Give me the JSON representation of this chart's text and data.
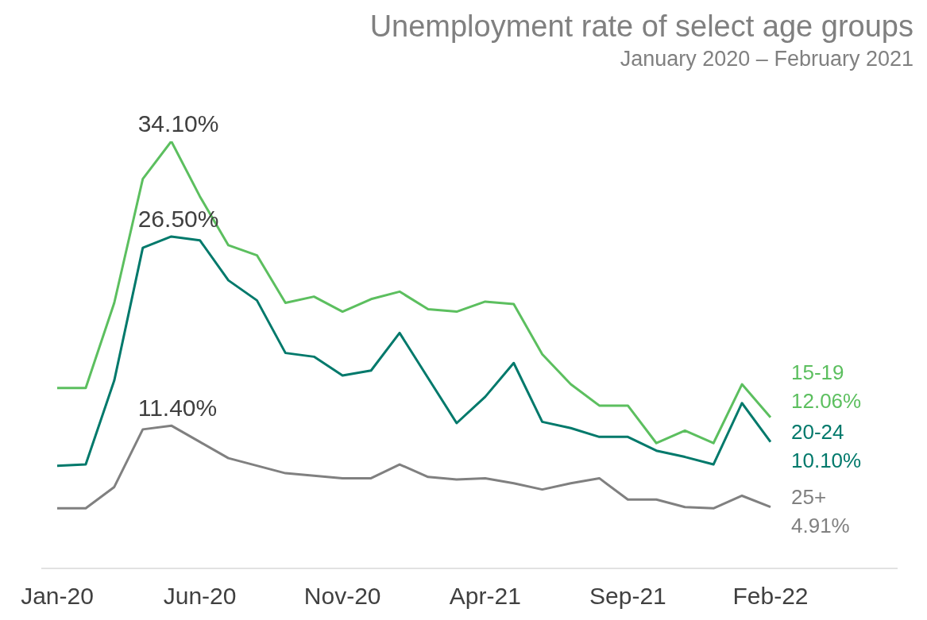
{
  "chart_data": {
    "type": "line",
    "title": "Unemployment rate of select age groups",
    "subtitle": "January 2020 – February 2021",
    "categories": [
      "Jan-20",
      null,
      null,
      null,
      null,
      "Jun-20",
      null,
      null,
      null,
      null,
      "Nov-20",
      null,
      null,
      null,
      null,
      "Apr-21",
      null,
      null,
      null,
      null,
      "Sep-21",
      null,
      null,
      null,
      null,
      "Feb-22"
    ],
    "series": [
      {
        "name": "15-19",
        "color": "#5cbf5f",
        "values": [
          14.4,
          14.4,
          21.2,
          31.1,
          34.1,
          29.7,
          25.8,
          25.0,
          21.2,
          21.7,
          20.5,
          21.5,
          22.1,
          20.7,
          20.5,
          21.3,
          21.1,
          17.1,
          14.7,
          13.0,
          13.0,
          10.0,
          11.0,
          10.0,
          14.7,
          12.06
        ],
        "value_labels": [
          null,
          null,
          null,
          null,
          "34.10%",
          null,
          null,
          null,
          null,
          null,
          null,
          null,
          null,
          null,
          null,
          null,
          null,
          null,
          null,
          null,
          null,
          null,
          null,
          null,
          null,
          "12.06%"
        ]
      },
      {
        "name": "20-24",
        "color": "#00796b",
        "values": [
          8.2,
          8.3,
          15.0,
          25.6,
          26.5,
          26.2,
          23.0,
          21.4,
          17.2,
          16.9,
          15.4,
          15.8,
          18.8,
          15.2,
          11.6,
          13.7,
          16.4,
          11.7,
          11.2,
          10.5,
          10.5,
          9.4,
          8.9,
          8.3,
          13.2,
          10.1
        ],
        "value_labels": [
          null,
          null,
          null,
          null,
          "26.50%",
          null,
          null,
          null,
          null,
          null,
          null,
          null,
          null,
          null,
          null,
          null,
          null,
          null,
          null,
          null,
          null,
          null,
          null,
          null,
          null,
          "10.10%"
        ]
      },
      {
        "name": "25+",
        "color": "#808080",
        "values": [
          4.8,
          4.8,
          6.5,
          11.1,
          11.4,
          10.1,
          8.8,
          8.2,
          7.6,
          7.4,
          7.2,
          7.2,
          8.3,
          7.3,
          7.1,
          7.2,
          6.8,
          6.3,
          6.8,
          7.2,
          5.5,
          5.5,
          4.9,
          4.8,
          5.8,
          4.91
        ],
        "value_labels": [
          null,
          null,
          null,
          null,
          "11.40%",
          null,
          null,
          null,
          null,
          null,
          null,
          null,
          null,
          null,
          null,
          null,
          null,
          null,
          null,
          null,
          null,
          null,
          null,
          null,
          null,
          "4.91%"
        ]
      }
    ],
    "grid": false,
    "legend": false,
    "marker": "none"
  }
}
